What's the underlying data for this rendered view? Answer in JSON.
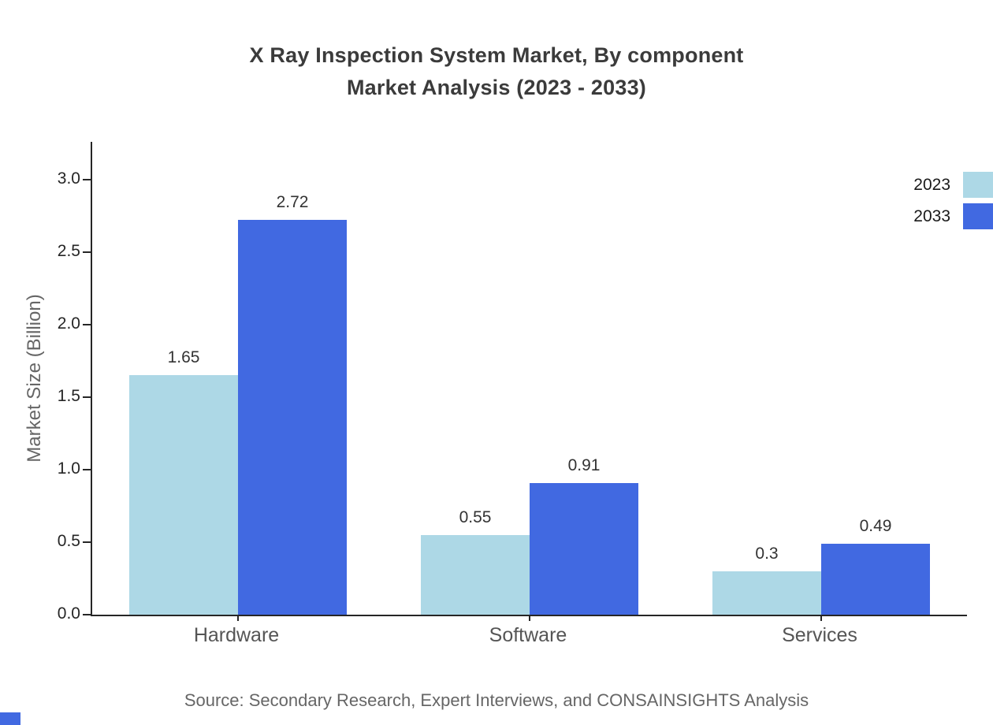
{
  "chart_data": {
    "type": "bar",
    "title_lines": [
      "X Ray Inspection System Market, By component",
      "Market Analysis (2023 - 2033)"
    ],
    "ylabel": "Market Size (Billion)",
    "xlabel": "",
    "categories": [
      "Hardware",
      "Software",
      "Services"
    ],
    "series": [
      {
        "name": "2023",
        "color": "#add8e6",
        "values": [
          1.65,
          0.55,
          0.3
        ]
      },
      {
        "name": "2033",
        "color": "#4169e1",
        "values": [
          2.72,
          0.91,
          0.49
        ]
      }
    ],
    "yticks": [
      0.0,
      0.5,
      1.0,
      1.5,
      2.0,
      2.5,
      3.0
    ],
    "ylim": [
      0,
      3.26
    ],
    "grid": false,
    "legend_position": "top-right",
    "source": "Source: Secondary Research, Expert Interviews, and CONSAINSIGHTS Analysis"
  },
  "colors": {
    "axis": "#262626",
    "title": "#3b3b3b",
    "tick_text": "#262626",
    "category_text": "#555555",
    "source_text": "#666666",
    "corner_mark": "#4169e1"
  }
}
